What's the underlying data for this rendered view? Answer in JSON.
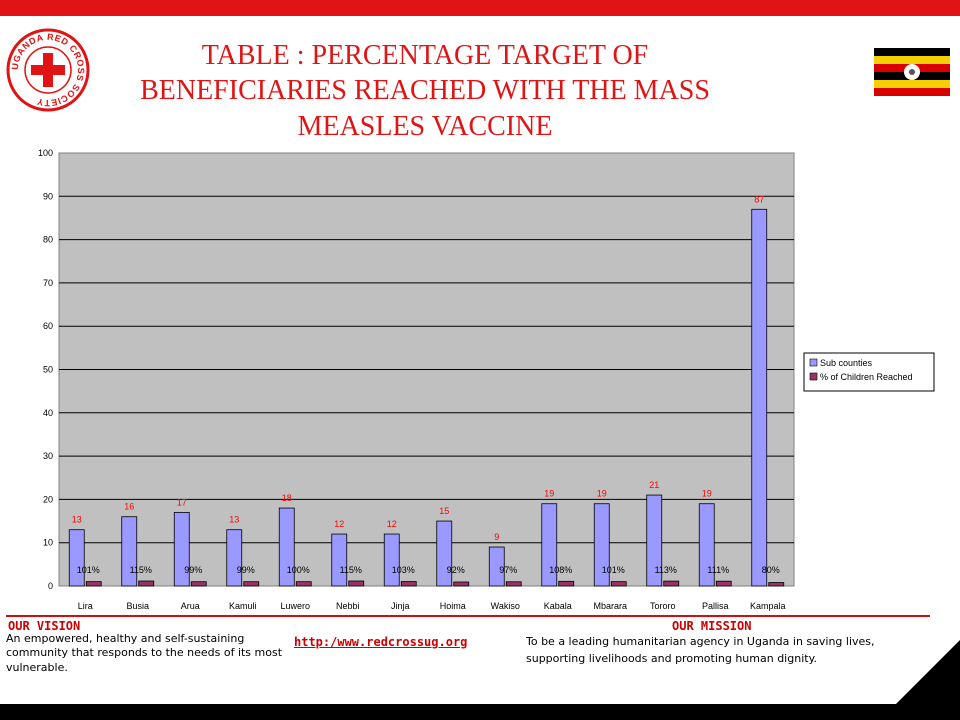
{
  "title": "TABLE : PERCENTAGE TARGET OF BENEFICIARIES REACHED WITH THE MASS MEASLES VACCINE",
  "logo": {
    "text": "UGANDA RED CROSS SOCIETY",
    "color": "#e01414"
  },
  "colors": {
    "accent": "#e01414",
    "plot_bg": "#c0c0c0",
    "series1": "#9999ff",
    "series2": "#993366"
  },
  "chart_data": {
    "type": "bar",
    "categories": [
      "Lira",
      "Busia",
      "Arua",
      "Kamuli",
      "Luwero",
      "Nebbi",
      "Jinja",
      "Hoima",
      "Wakiso",
      "Kabala",
      "Mbarara",
      "Tororo",
      "Pallisa",
      "Kampala"
    ],
    "series": [
      {
        "name": "Sub counties",
        "values": [
          13,
          16,
          17,
          13,
          18,
          12,
          12,
          15,
          9,
          19,
          19,
          21,
          19,
          87
        ],
        "labels": [
          "13",
          "16",
          "17",
          "13",
          "18",
          "12",
          "12",
          "15",
          "9",
          "19",
          "19",
          "21",
          "19",
          "87"
        ],
        "color": "#9999ff"
      },
      {
        "name": "% of Children Reached",
        "values": [
          1.01,
          1.15,
          0.99,
          0.99,
          1.0,
          1.15,
          1.03,
          0.92,
          0.97,
          1.08,
          1.01,
          1.13,
          1.11,
          0.8
        ],
        "labels": [
          "101%",
          "115%",
          "99%",
          "99%",
          "100%",
          "115%",
          "103%",
          "92%",
          "97%",
          "108%",
          "101%",
          "113%",
          "111%",
          "80%"
        ],
        "color": "#993366"
      }
    ],
    "ylim": [
      0,
      100
    ],
    "yticks": [
      0,
      10,
      20,
      30,
      40,
      50,
      60,
      70,
      80,
      90,
      100
    ],
    "grid": true,
    "legend": "right"
  },
  "footer": {
    "vision_heading": "OUR VISION",
    "vision_text": "An empowered, healthy and self-sustaining community that responds to the needs of its most vulnerable.",
    "url": "http:/www.redcrossug.org",
    "mission_heading": "OUR MISSION",
    "mission_text": "To be a leading humanitarian agency in Uganda in saving lives, supporting livelihoods and promoting human dignity."
  }
}
